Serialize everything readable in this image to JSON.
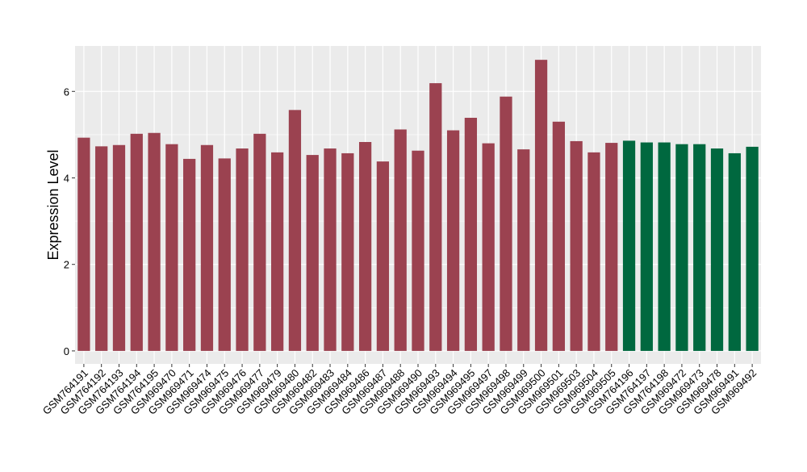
{
  "chart_data": {
    "type": "bar",
    "title": "",
    "xlabel": "",
    "ylabel": "Expression Level",
    "ylim": [
      -0.3,
      7.05
    ],
    "yticks": [
      0,
      2,
      4,
      6
    ],
    "grid": true,
    "legend": "none",
    "colors": {
      "group_a": "#9b4250",
      "group_b": "#00683f",
      "panel": "#ebebeb",
      "grid": "#ffffff"
    },
    "categories": [
      "GSM764191",
      "GSM764192",
      "GSM764193",
      "GSM764194",
      "GSM764195",
      "GSM969470",
      "GSM969471",
      "GSM969474",
      "GSM969475",
      "GSM969476",
      "GSM969477",
      "GSM969479",
      "GSM969480",
      "GSM969482",
      "GSM969483",
      "GSM969484",
      "GSM969486",
      "GSM969487",
      "GSM969488",
      "GSM969490",
      "GSM969493",
      "GSM969494",
      "GSM969495",
      "GSM969497",
      "GSM969498",
      "GSM969499",
      "GSM969500",
      "GSM969501",
      "GSM969503",
      "GSM969504",
      "GSM969505",
      "GSM764196",
      "GSM764197",
      "GSM764198",
      "GSM969472",
      "GSM969473",
      "GSM969478",
      "GSM969491",
      "GSM969492"
    ],
    "values": [
      4.93,
      4.73,
      4.76,
      5.02,
      5.04,
      4.78,
      4.44,
      4.76,
      4.45,
      4.68,
      5.02,
      4.59,
      5.57,
      4.53,
      4.68,
      4.57,
      4.83,
      4.38,
      5.12,
      4.63,
      6.19,
      5.1,
      5.39,
      4.8,
      5.88,
      4.66,
      6.73,
      5.3,
      4.85,
      4.59,
      4.81,
      4.86,
      4.82,
      4.82,
      4.78,
      4.78,
      4.68,
      4.57,
      4.72
    ],
    "groups": [
      "a",
      "a",
      "a",
      "a",
      "a",
      "a",
      "a",
      "a",
      "a",
      "a",
      "a",
      "a",
      "a",
      "a",
      "a",
      "a",
      "a",
      "a",
      "a",
      "a",
      "a",
      "a",
      "a",
      "a",
      "a",
      "a",
      "a",
      "a",
      "a",
      "a",
      "a",
      "b",
      "b",
      "b",
      "b",
      "b",
      "b",
      "b",
      "b"
    ]
  }
}
